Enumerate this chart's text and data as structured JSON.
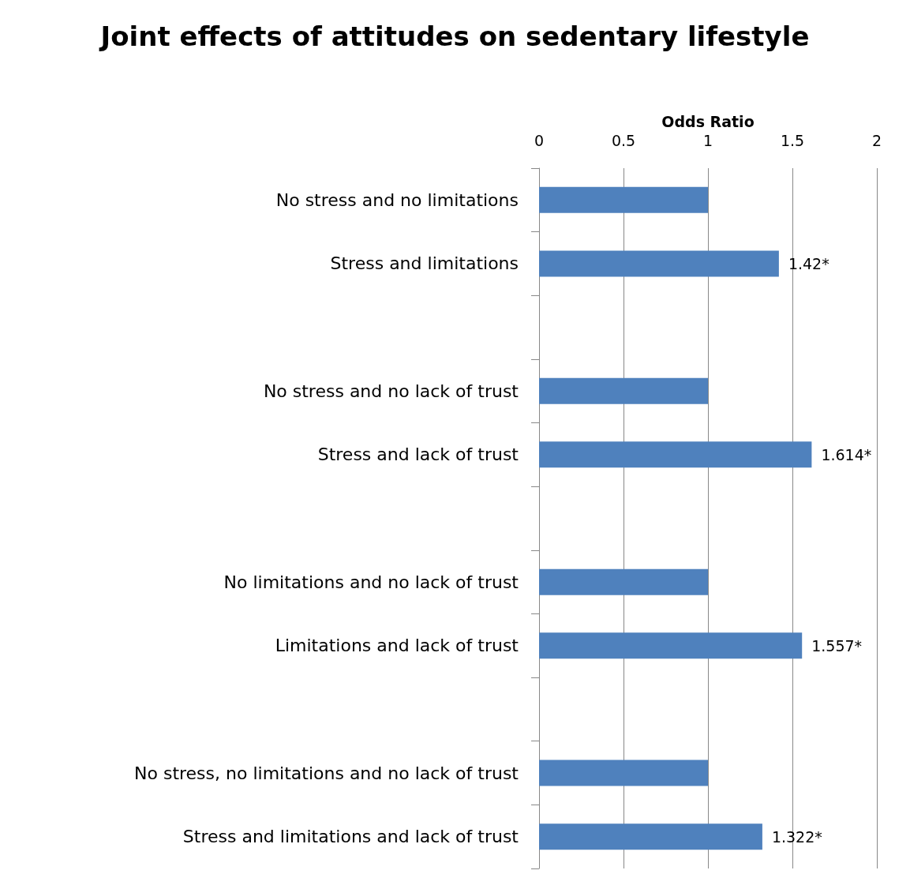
{
  "chart_data": {
    "type": "bar",
    "orientation": "horizontal",
    "title": "Joint effects of attitudes on sedentary lifestyle",
    "xlabel": "Odds Ratio",
    "categories": [
      "No stress and no limitations",
      "Stress and limitations",
      null,
      "No stress and no lack of trust",
      "Stress and lack of trust",
      null,
      "No limitations and no lack of trust",
      "Limitations and lack of trust",
      null,
      "No stress, no limitations and no lack of trust",
      "Stress and limitations and lack of trust"
    ],
    "values": [
      1,
      1.42,
      null,
      1,
      1.614,
      null,
      1,
      1.557,
      null,
      1,
      1.322
    ],
    "value_labels": [
      null,
      "1.42*",
      null,
      null,
      "1.614*",
      null,
      null,
      "1.557*",
      null,
      null,
      "1.322*"
    ],
    "color": "#4f81bd",
    "xlim": [
      0,
      2
    ],
    "xticks": [
      0,
      0.5,
      1,
      1.5,
      2
    ],
    "grid": "x"
  }
}
